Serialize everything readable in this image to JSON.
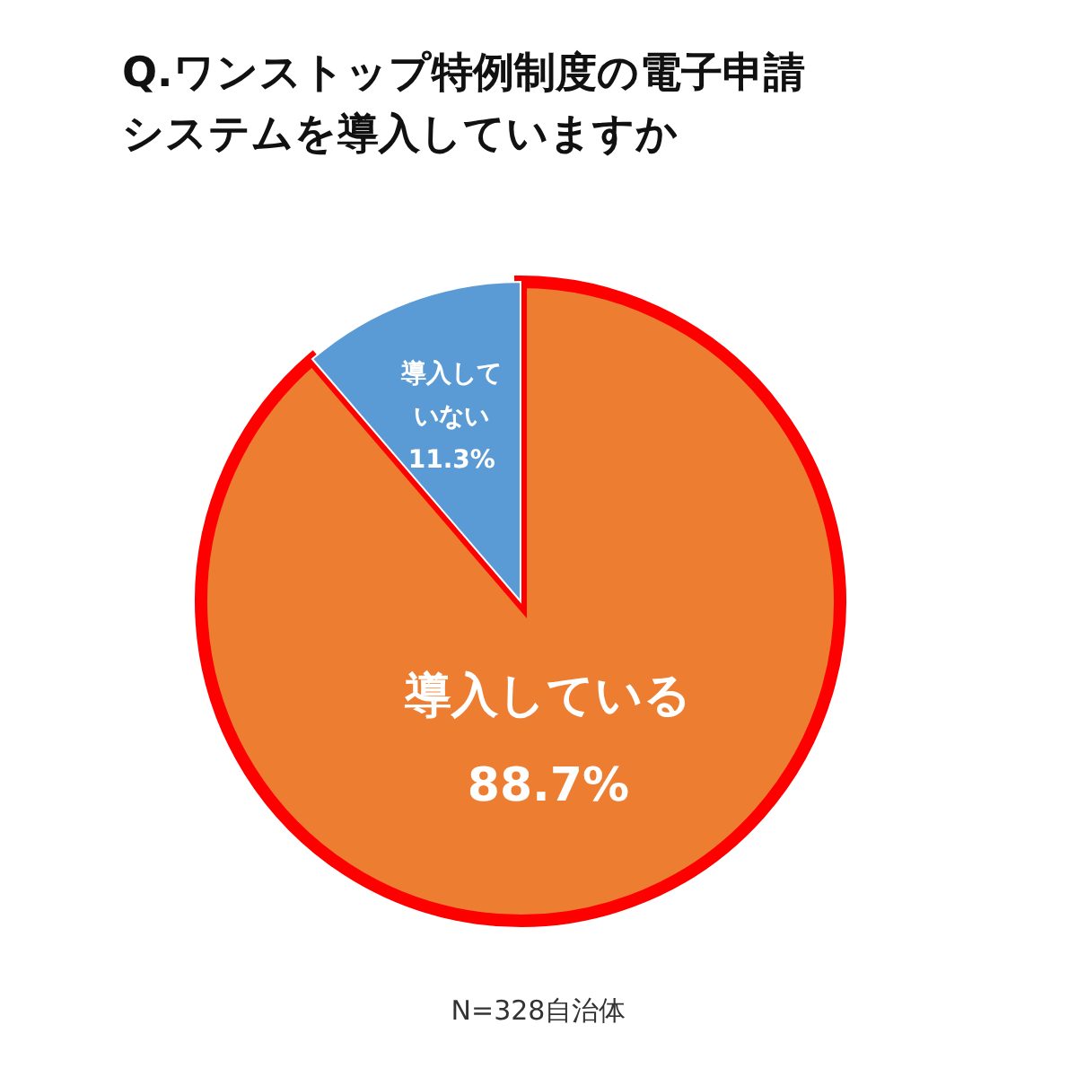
{
  "chart_data": {
    "type": "pie",
    "title": "Q.ワンストップ特例制度の電子申請システムを導入していますか",
    "categories": [
      "導入している",
      "導入していない"
    ],
    "values": [
      88.7,
      11.3
    ],
    "colors": [
      "#ed7d31",
      "#5b9bd5"
    ],
    "value_labels": [
      "88.7%",
      "11.3%"
    ],
    "annotations": [
      "N=328自治体"
    ]
  }
}
